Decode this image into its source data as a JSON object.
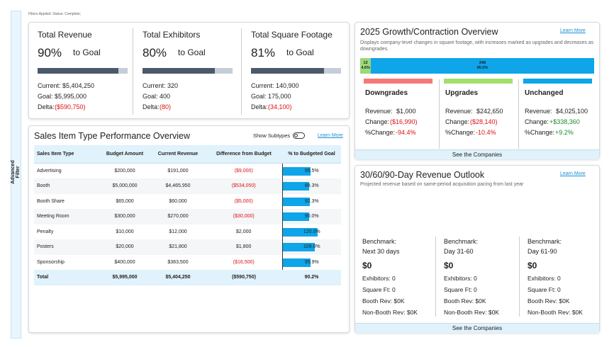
{
  "filters_applied": "Filters Applied: Status: Complete;",
  "sidebar": {
    "label": "Advanced Filter"
  },
  "kpis": [
    {
      "title": "Total Revenue",
      "percent": "90%",
      "goal_label": "to Goal",
      "current": "Current: $5,404,250",
      "goal": "Goal: $5,995,000",
      "delta_label": "Delta:",
      "delta": "($590,750)"
    },
    {
      "title": "Total Exhibitors",
      "percent": "80%",
      "goal_label": "to Goal",
      "current": "Current: 320",
      "goal": "Goal: 400",
      "delta_label": "Delta:",
      "delta": "(80)"
    },
    {
      "title": "Total Square Footage",
      "percent": "81%",
      "goal_label": "to Goal",
      "current": "Current: 140,900",
      "goal": "Goal: 175,000",
      "delta_label": "Delta:",
      "delta": "(34,100)"
    }
  ],
  "sales_table": {
    "title": "Sales Item Type Performance Overview",
    "toggle_label": "Show Subtypes",
    "learn_more": "Learn More",
    "columns": [
      "Sales Item Type",
      "Budget Amount",
      "Current Revenue",
      "Difference from Budget",
      "% to Budgeted Goal"
    ],
    "rows": [
      [
        "Advertising",
        "$200,000",
        "$191,000",
        "($9,000)",
        "95.5%"
      ],
      [
        "Booth",
        "$5,000,000",
        "$4,465,950",
        "($534,050)",
        "89.3%"
      ],
      [
        "Booth Share",
        "$65,000",
        "$60,000",
        "($5,000)",
        "92.3%"
      ],
      [
        "Meeting Room",
        "$300,000",
        "$270,000",
        "($30,000)",
        "90.0%"
      ],
      [
        "Penalty",
        "$10,000",
        "$12,000",
        "$2,000",
        "120.0%"
      ],
      [
        "Posters",
        "$20,000",
        "$21,800",
        "$1,800",
        "109.0%"
      ],
      [
        "Sponsorship",
        "$400,000",
        "$383,500",
        "($16,500)",
        "95.9%"
      ]
    ],
    "total": [
      "Total",
      "$5,995,000",
      "$5,404,250",
      "($590,750)",
      "90.2%"
    ]
  },
  "growth": {
    "title": "2025 Growth/Contraction Overview",
    "learn_more": "Learn More",
    "description": "Displays company-level changes in square footage, with increases marked as upgrades and decreases as downgrades.",
    "bar": [
      {
        "count": "12",
        "percent": "4.6%",
        "color": "#9bd97a"
      },
      {
        "count": "248",
        "percent": "95.0%",
        "color": "#0ea5e9"
      }
    ],
    "groups": [
      {
        "name": "Downgrades",
        "color": "#f47a7a",
        "lines": [
          [
            "Revenue:",
            "$1,000"
          ],
          [
            "Change:",
            "($16,990)"
          ],
          [
            "%Change:",
            "-94.4%"
          ]
        ]
      },
      {
        "name": "Upgrades",
        "color": "#a3e06b",
        "lines": [
          [
            "Revenue:",
            "$242,650"
          ],
          [
            "Change:",
            "($28,140)"
          ],
          [
            "%Change:",
            "-10.4%"
          ]
        ]
      },
      {
        "name": "Unchanged",
        "color": "#0ea5e9",
        "lines": [
          [
            "Revenue:",
            "$4,025,100"
          ],
          [
            "Change:",
            "+$338,360"
          ],
          [
            "%Change:",
            "+9.2%"
          ]
        ]
      }
    ],
    "button": "See the Companies"
  },
  "outlook": {
    "title": "30/60/90-Day Revenue Outlook",
    "learn_more": "Learn More",
    "description": "Projected revenue based on same-period acquisition pacing from last year",
    "columns": [
      {
        "benchmark": "Benchmark:",
        "period": "Next 30 days",
        "revenue": "$0",
        "exhibitors": "Exhibitors: 0",
        "square_ft": "Square Ft: 0",
        "booth_rev": "Booth Rev: $0K",
        "non_booth_rev": "Non-Booth Rev: $0K"
      },
      {
        "benchmark": "Benchmark:",
        "period": "Day 31-60",
        "revenue": "$0",
        "exhibitors": "Exhibitors: 0",
        "square_ft": "Square Ft: 0",
        "booth_rev": "Booth Rev: $0K",
        "non_booth_rev": "Non-Booth Rev: $0K"
      },
      {
        "benchmark": "Benchmark:",
        "period": "Day 61-90",
        "revenue": "$0",
        "exhibitors": "Exhibitors: 0",
        "square_ft": "Square Ft: 0",
        "booth_rev": "Booth Rev: $0K",
        "non_booth_rev": "Non-Booth Rev: $0K"
      }
    ],
    "button": "See the Companies"
  }
}
